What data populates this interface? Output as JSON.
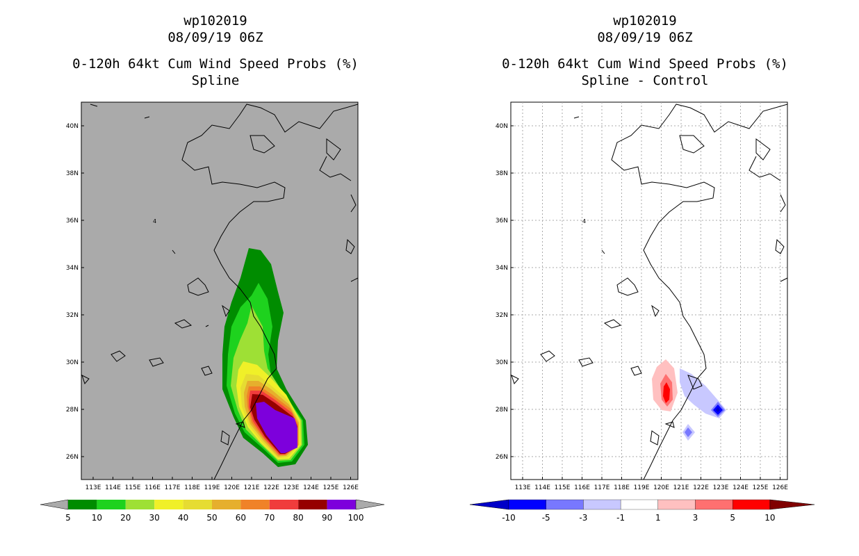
{
  "left_panel": {
    "storm_id": "wp102019",
    "datetime": "08/09/19 06Z",
    "product": "0-120h 64kt Cum Wind Speed Probs (%)",
    "subtitle": "Spline",
    "colorbar_labels": [
      "5",
      "10",
      "20",
      "30",
      "40",
      "50",
      "60",
      "70",
      "80",
      "90",
      "100"
    ],
    "colorbar_colors": [
      "#008c00",
      "#1ed21e",
      "#9ee035",
      "#f0f028",
      "#e6dc32",
      "#e6af2d",
      "#f08228",
      "#f03c3c",
      "#960000",
      "#7d00dc"
    ]
  },
  "right_panel": {
    "storm_id": "wp102019",
    "datetime": "08/09/19 06Z",
    "product": "0-120h 64kt Cum Wind Speed Probs (%)",
    "subtitle": "Spline - Control",
    "colorbar_labels": [
      "-10",
      "-5",
      "-3",
      "-1",
      "1",
      "3",
      "5",
      "10"
    ],
    "colorbar_colors": [
      "#0000c8",
      "#0000ff",
      "#7878ff",
      "#c8c8ff",
      "#ffffff",
      "#ffc0c0",
      "#ff7070",
      "#ff0000",
      "#800000"
    ]
  },
  "map": {
    "lat_labels": [
      "40N",
      "38N",
      "36N",
      "34N",
      "32N",
      "30N",
      "28N",
      "26N"
    ],
    "lon_labels": [
      "113E",
      "114E",
      "115E",
      "116E",
      "117E",
      "118E",
      "119E",
      "120E",
      "121E",
      "122E",
      "123E",
      "124E",
      "125E",
      "126E"
    ],
    "island_label": "4",
    "background_left": "#aaaaaa",
    "background_right": "#ffffff"
  }
}
